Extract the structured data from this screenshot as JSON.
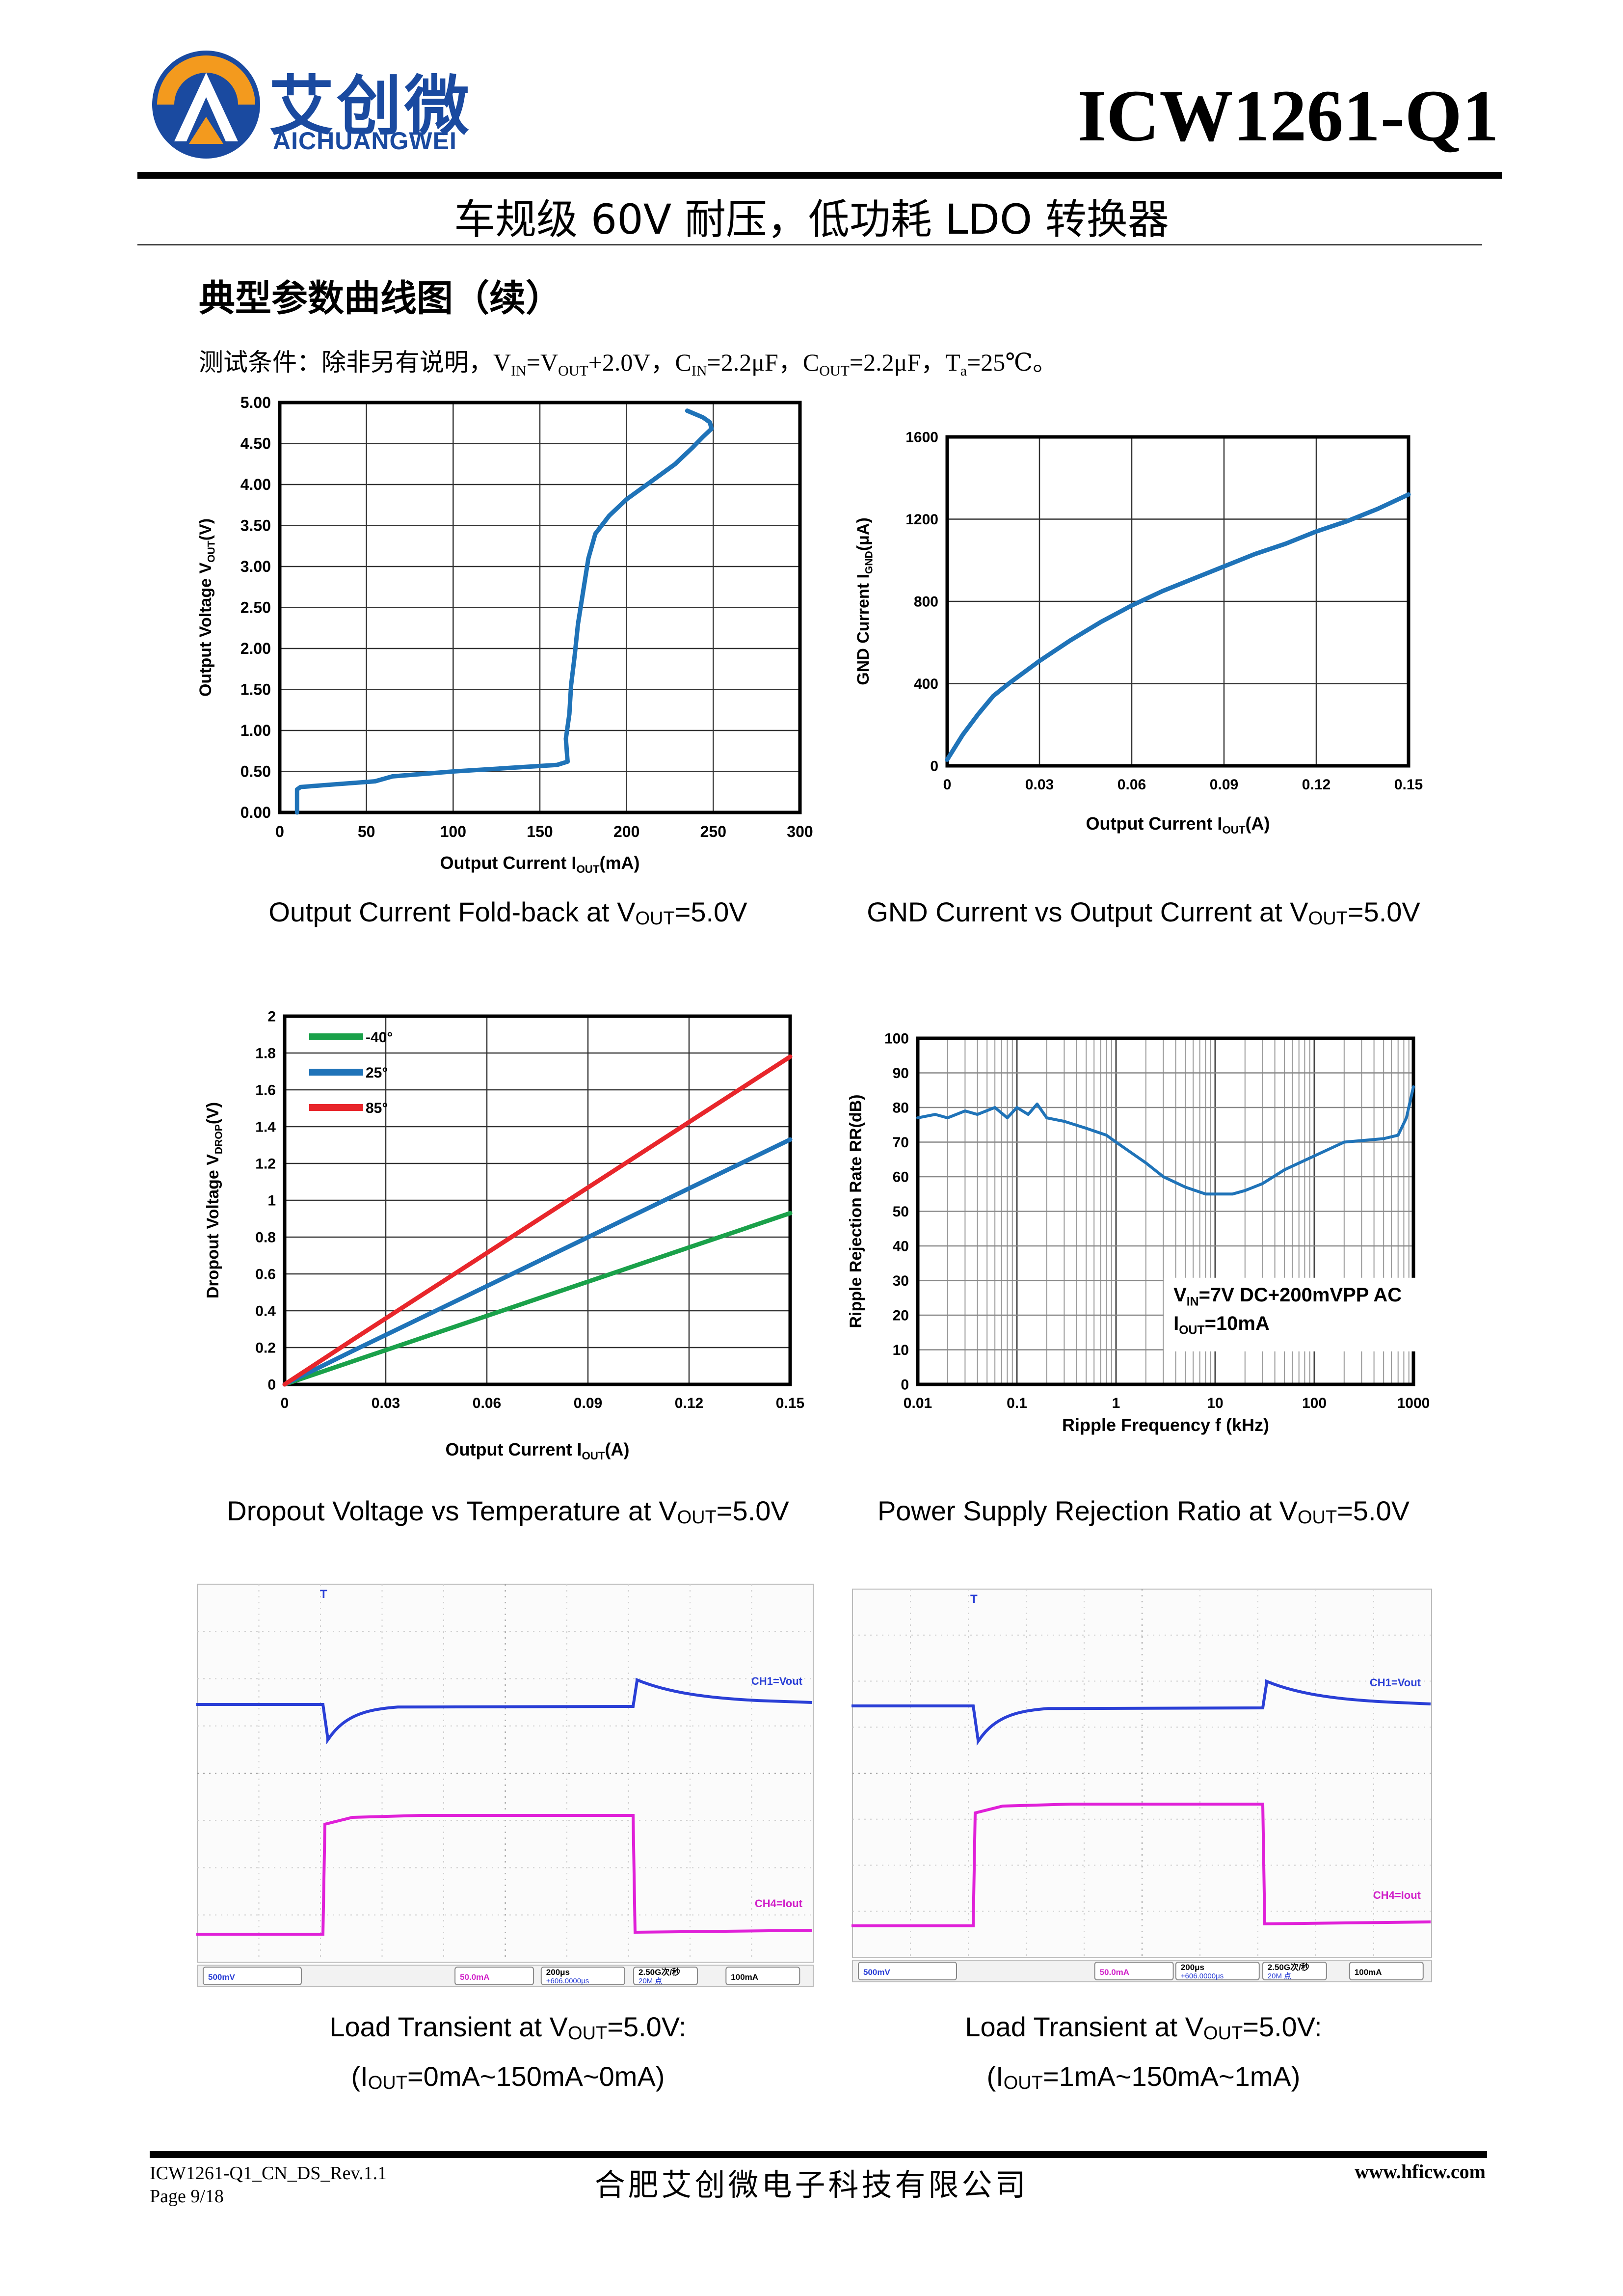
{
  "header": {
    "logo_cn": "艾创微",
    "logo_en": "AICHUANGWEI",
    "part_number": "ICW1261-Q1",
    "subtitle": "车规级 60V 耐压，低功耗 LDO 转换器"
  },
  "section": {
    "title": "典型参数曲线图（续）",
    "conditions_prefix": "测试条件：除非另有说明，",
    "conditions_parts": [
      "V",
      "IN",
      "=V",
      "OUT",
      "+2.0V，C",
      "IN",
      "=2.2μF，C",
      "OUT",
      "=2.2μF，T",
      "a",
      "=25℃。"
    ]
  },
  "charts": [
    {
      "id": "foldback",
      "type": "line",
      "xlabel": "Output Current I",
      "xlabel_sub": "OUT",
      "xlabel_suffix": "(mA)",
      "ylabel": "Output Voltage V",
      "ylabel_sub": "OUT",
      "ylabel_suffix": "(V)",
      "xlim": [
        0,
        300
      ],
      "ylim": [
        0,
        5
      ],
      "x_ticks": [
        "0",
        "50",
        "100",
        "150",
        "200",
        "250",
        "300"
      ],
      "y_ticks": [
        "0.00",
        "0.50",
        "1.00",
        "1.50",
        "2.00",
        "2.50",
        "3.00",
        "3.50",
        "4.00",
        "4.50",
        "5.00"
      ],
      "grid": true,
      "series": [
        {
          "color": "#1f73b8",
          "x": [
            10,
            10,
            12,
            30,
            55,
            65,
            100,
            130,
            160,
            166,
            165,
            167,
            168,
            170,
            172,
            175,
            178,
            182,
            190,
            200,
            215,
            228,
            238,
            244,
            249,
            248,
            244,
            235
          ],
          "y": [
            0.0,
            0.28,
            0.31,
            0.34,
            0.38,
            0.44,
            0.5,
            0.54,
            0.58,
            0.62,
            0.9,
            1.2,
            1.55,
            1.9,
            2.3,
            2.7,
            3.1,
            3.4,
            3.62,
            3.82,
            4.05,
            4.25,
            4.45,
            4.58,
            4.68,
            4.76,
            4.82,
            4.9
          ]
        }
      ],
      "caption": "Output Current Fold-back at V",
      "caption_sub": "OUT",
      "caption_suffix": "=5.0V"
    },
    {
      "id": "gnd_current",
      "type": "line",
      "xlabel": "Output Current I",
      "xlabel_sub": "OUT",
      "xlabel_suffix": "(A)",
      "ylabel": "GND Current I",
      "ylabel_sub": "GND",
      "ylabel_suffix": "(μA)",
      "xlim": [
        0,
        0.15
      ],
      "ylim": [
        0,
        1600
      ],
      "x_ticks": [
        "0",
        "0.03",
        "0.06",
        "0.09",
        "0.12",
        "0.15"
      ],
      "y_ticks": [
        "0",
        "400",
        "800",
        "1200",
        "1600"
      ],
      "grid": true,
      "series": [
        {
          "color": "#1f73b8",
          "x": [
            0.0,
            0.005,
            0.01,
            0.015,
            0.02,
            0.03,
            0.04,
            0.05,
            0.06,
            0.07,
            0.08,
            0.09,
            0.1,
            0.11,
            0.12,
            0.13,
            0.14,
            0.15
          ],
          "y": [
            30,
            150,
            250,
            340,
            400,
            510,
            610,
            700,
            780,
            850,
            910,
            970,
            1030,
            1080,
            1140,
            1190,
            1250,
            1320
          ]
        }
      ],
      "caption": "GND Current vs Output Current at V",
      "caption_sub": "OUT",
      "caption_suffix": "=5.0V"
    },
    {
      "id": "dropout",
      "type": "line",
      "xlabel": "Output Current I",
      "xlabel_sub": "OUT",
      "xlabel_suffix": "(A)",
      "ylabel": "Dropout Voltage V",
      "ylabel_sub": "DROP",
      "ylabel_suffix": "(V)",
      "xlim": [
        0,
        0.15
      ],
      "ylim": [
        0,
        2
      ],
      "x_ticks": [
        "0",
        "0.03",
        "0.06",
        "0.09",
        "0.12",
        "0.15"
      ],
      "y_ticks": [
        "0",
        "0.2",
        "0.4",
        "0.6",
        "0.8",
        "1",
        "1.2",
        "1.4",
        "1.6",
        "1.8",
        "2"
      ],
      "grid": true,
      "legend": "top-left",
      "series": [
        {
          "name": "-40°",
          "color": "#1aa14a",
          "x": [
            0,
            0.15
          ],
          "y": [
            0,
            0.93
          ]
        },
        {
          "name": "25°",
          "color": "#1f73b8",
          "x": [
            0,
            0.01,
            0.02,
            0.15
          ],
          "y": [
            0,
            0.09,
            0.18,
            1.33
          ]
        },
        {
          "name": "85°",
          "color": "#e8262b",
          "x": [
            0,
            0.01,
            0.02,
            0.15
          ],
          "y": [
            0,
            0.12,
            0.24,
            1.78
          ]
        }
      ],
      "caption": "Dropout Voltage vs Temperature at V",
      "caption_sub": "OUT",
      "caption_suffix": "=5.0V"
    },
    {
      "id": "psrr",
      "type": "line",
      "xscale": "log",
      "xlabel": "Ripple Frequency f (kHz)",
      "ylabel": "Ripple Rejection Rate RR(dB)",
      "xlim": [
        0.01,
        1000
      ],
      "ylim": [
        0,
        100
      ],
      "x_ticks": [
        "0.01",
        "0.1",
        "1",
        "10",
        "100",
        "1000"
      ],
      "y_ticks": [
        "0",
        "10",
        "20",
        "30",
        "40",
        "50",
        "60",
        "70",
        "80",
        "90",
        "100"
      ],
      "grid": true,
      "annotation_line1_prefix": "V",
      "annotation_line1_sub": "IN",
      "annotation_line1_suffix": "=7V DC+200mVPP AC",
      "annotation_line2_prefix": "I",
      "annotation_line2_sub": "OUT",
      "annotation_line2_suffix": "=10mA",
      "series": [
        {
          "color": "#1f73b8",
          "x": [
            0.01,
            0.015,
            0.02,
            0.03,
            0.04,
            0.06,
            0.08,
            0.1,
            0.13,
            0.16,
            0.2,
            0.3,
            0.5,
            0.8,
            1,
            2,
            3,
            5,
            8,
            10,
            15,
            20,
            30,
            50,
            100,
            200,
            500,
            700,
            850,
            1000
          ],
          "y": [
            77,
            78,
            77,
            79,
            78,
            80,
            77,
            80,
            78,
            81,
            77,
            76,
            74,
            72,
            70,
            64,
            60,
            57,
            55,
            55,
            55,
            56,
            58,
            62,
            66,
            70,
            71,
            72,
            77,
            86
          ]
        }
      ],
      "caption": "Power Supply Rejection Ratio at V",
      "caption_sub": "OUT",
      "caption_suffix": "=5.0V"
    }
  ],
  "scopes": [
    {
      "id": "load_transient_1",
      "ch1_label": "CH1=Vout",
      "ch4_label": "CH4=Iout",
      "marker": "T",
      "status": [
        "500mV",
        "50.0mA",
        "200μs",
        "2.50G次/秒",
        "100mA"
      ],
      "status_sub": [
        "",
        "",
        "+606.0000μs",
        "20M 点",
        ""
      ],
      "caption_line1": "Load Transient at V",
      "caption_line1_sub": "OUT",
      "caption_line1_suffix": "=5.0V:",
      "caption_line2_prefix": "(I",
      "caption_line2_sub": "OUT",
      "caption_line2_suffix": "=0mA~150mA~0mA)"
    },
    {
      "id": "load_transient_2",
      "ch1_label": "CH1=Vout",
      "ch4_label": "CH4=Iout",
      "marker": "T",
      "status": [
        "500mV",
        "50.0mA",
        "200μs",
        "2.50G次/秒",
        "100mA"
      ],
      "status_sub": [
        "",
        "",
        "+606.0000μs",
        "20M 点",
        ""
      ],
      "caption_line1": "Load Transient at V",
      "caption_line1_sub": "OUT",
      "caption_line1_suffix": "=5.0V:",
      "caption_line2_prefix": "(I",
      "caption_line2_sub": "OUT",
      "caption_line2_suffix": "=1mA~150mA~1mA)"
    }
  ],
  "footer": {
    "doc_id": "ICW1261-Q1_CN_DS_Rev.1.1",
    "page": "Page 9/18",
    "company": "合肥艾创微电子科技有限公司",
    "website": "www.hficw.com"
  }
}
